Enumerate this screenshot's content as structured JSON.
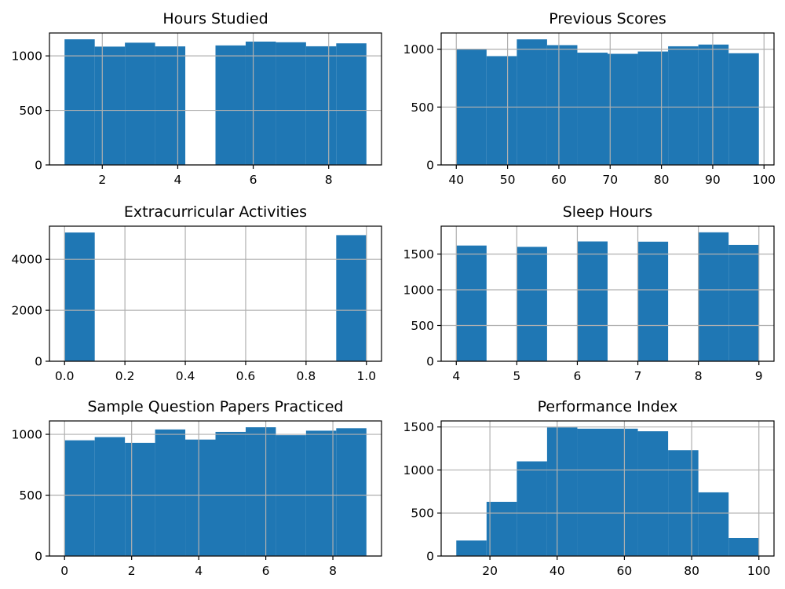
{
  "chart_data": [
    {
      "type": "bar",
      "title": "Hours Studied",
      "bin_edges": [
        1,
        1.8,
        2.6,
        3.4,
        4.2,
        5,
        5.8,
        6.6,
        7.4,
        8.2,
        9
      ],
      "values": [
        1152,
        1085,
        1121,
        1087,
        0,
        1096,
        1131,
        1125,
        1088,
        1115
      ],
      "xlim": [
        0.6,
        9.4
      ],
      "ylim": [
        0,
        1210
      ],
      "xticks": [
        2,
        4,
        6,
        8
      ],
      "xtick_labels": [
        "2",
        "4",
        "6",
        "8"
      ],
      "yticks": [
        0,
        500,
        1000
      ],
      "ytick_labels": [
        "0",
        "500",
        "1000"
      ],
      "grid": true
    },
    {
      "type": "bar",
      "title": "Previous Scores",
      "bin_edges": [
        40,
        45.9,
        51.8,
        57.7,
        63.6,
        69.5,
        75.4,
        81.3,
        87.2,
        93.1,
        99
      ],
      "values": [
        1000,
        940,
        1085,
        1035,
        970,
        960,
        980,
        1025,
        1040,
        965
      ],
      "xlim": [
        37.05,
        101.95
      ],
      "ylim": [
        0,
        1140
      ],
      "xticks": [
        40,
        50,
        60,
        70,
        80,
        90,
        100
      ],
      "xtick_labels": [
        "40",
        "50",
        "60",
        "70",
        "80",
        "90",
        "100"
      ],
      "yticks": [
        0,
        500,
        1000
      ],
      "ytick_labels": [
        "0",
        "500",
        "1000"
      ],
      "grid": true
    },
    {
      "type": "bar",
      "title": "Extracurricular Activities",
      "bin_edges": [
        0,
        0.1,
        0.2,
        0.3,
        0.4,
        0.5,
        0.6,
        0.7,
        0.8,
        0.9,
        1.0
      ],
      "values": [
        5052,
        0,
        0,
        0,
        0,
        0,
        0,
        0,
        0,
        4948
      ],
      "xlim": [
        -0.05,
        1.05
      ],
      "ylim": [
        0,
        5300
      ],
      "xticks": [
        0,
        0.2,
        0.4,
        0.6,
        0.8,
        1.0
      ],
      "xtick_labels": [
        "0.0",
        "0.2",
        "0.4",
        "0.6",
        "0.8",
        "1.0"
      ],
      "yticks": [
        0,
        2000,
        4000
      ],
      "ytick_labels": [
        "0",
        "2000",
        "4000"
      ],
      "grid": true
    },
    {
      "type": "bar",
      "title": "Sleep Hours",
      "bin_edges": [
        4,
        4.5,
        5,
        5.5,
        6,
        6.5,
        7,
        7.5,
        8,
        8.5,
        9
      ],
      "values": [
        1619,
        0,
        1601,
        0,
        1676,
        0,
        1673,
        0,
        1804,
        1627
      ],
      "xlim": [
        3.75,
        9.25
      ],
      "ylim": [
        0,
        1890
      ],
      "xticks": [
        4,
        5,
        6,
        7,
        8,
        9
      ],
      "xtick_labels": [
        "4",
        "5",
        "6",
        "7",
        "8",
        "9"
      ],
      "yticks": [
        0,
        500,
        1000,
        1500
      ],
      "ytick_labels": [
        "0",
        "500",
        "1000",
        "1500"
      ],
      "grid": true
    },
    {
      "type": "bar",
      "title": "Sample Question Papers Practiced",
      "bin_edges": [
        0,
        0.9,
        1.8,
        2.7,
        3.6,
        4.5,
        5.4,
        6.3,
        7.2,
        8.1,
        9
      ],
      "values": [
        951,
        977,
        930,
        1040,
        957,
        1020,
        1058,
        993,
        1030,
        1050
      ],
      "xlim": [
        -0.45,
        9.45
      ],
      "ylim": [
        0,
        1110
      ],
      "xticks": [
        0,
        2,
        4,
        6,
        8
      ],
      "xtick_labels": [
        "0",
        "2",
        "4",
        "6",
        "8"
      ],
      "yticks": [
        0,
        500,
        1000
      ],
      "ytick_labels": [
        "0",
        "500",
        "1000"
      ],
      "grid": true
    },
    {
      "type": "bar",
      "title": "Performance Index",
      "bin_edges": [
        10,
        19,
        28,
        37,
        46,
        55,
        64,
        73,
        82,
        91,
        100
      ],
      "values": [
        180,
        630,
        1100,
        1495,
        1480,
        1480,
        1450,
        1230,
        740,
        210
      ],
      "xlim": [
        5.5,
        104.5
      ],
      "ylim": [
        0,
        1570
      ],
      "xticks": [
        20,
        40,
        60,
        80,
        100
      ],
      "xtick_labels": [
        "20",
        "40",
        "60",
        "80",
        "100"
      ],
      "yticks": [
        0,
        500,
        1000,
        1500
      ],
      "ytick_labels": [
        "0",
        "500",
        "1000",
        "1500"
      ],
      "grid": true
    }
  ],
  "colors": {
    "bar": "#1f77b4",
    "grid": "#b0b0b0",
    "axis": "#000000"
  }
}
